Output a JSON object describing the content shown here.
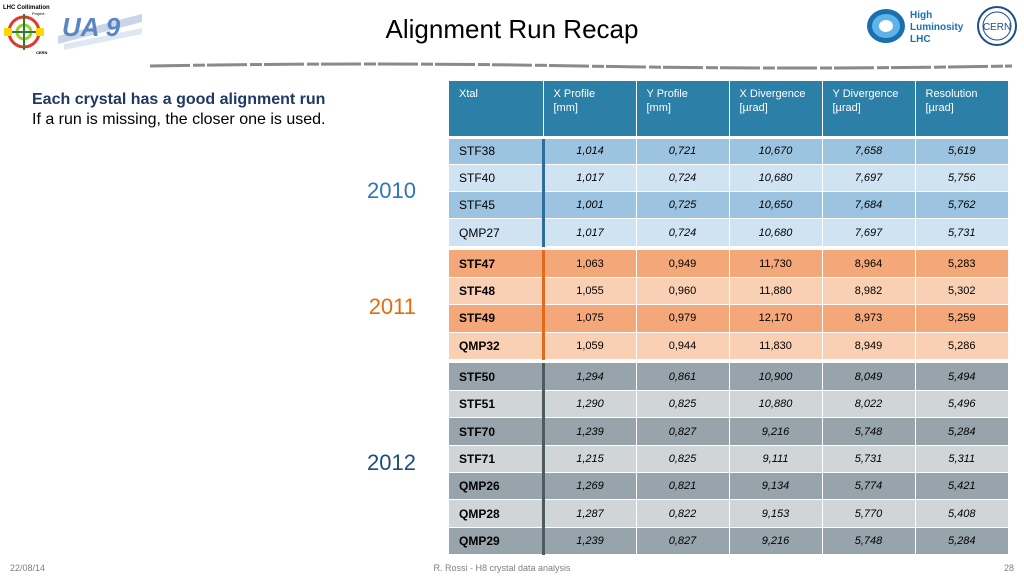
{
  "slide": {
    "title": "Alignment Run Recap",
    "intro_heading": "Each crystal has a good alignment run",
    "intro_text": "If a run is missing, the closer one is used."
  },
  "logos": {
    "left1": "LHC Collimation Project CERN",
    "left2": "UA 9",
    "right1": "High Luminosity LHC",
    "right2": "CERN"
  },
  "years": [
    "2010",
    "2011",
    "2012"
  ],
  "table": {
    "headers": [
      {
        "line1": "Xtal",
        "line2": ""
      },
      {
        "line1": "X Profile",
        "line2": "[mm]"
      },
      {
        "line1": "Y Profile",
        "line2": "[mm]"
      },
      {
        "line1": "X Divergence",
        "line2": "[µrad]"
      },
      {
        "line1": "Y Divergence",
        "line2": "[µrad]"
      },
      {
        "line1": "Resolution",
        "line2": "[µrad]"
      }
    ],
    "group_2010": [
      [
        "STF38",
        "1,014",
        "0,721",
        "10,670",
        "7,658",
        "5,619"
      ],
      [
        "STF40",
        "1,017",
        "0,724",
        "10,680",
        "7,697",
        "5,756"
      ],
      [
        "STF45",
        "1,001",
        "0,725",
        "10,650",
        "7,684",
        "5,762"
      ],
      [
        "QMP27",
        "1,017",
        "0,724",
        "10,680",
        "7,697",
        "5,731"
      ]
    ],
    "group_2011": [
      [
        "STF47",
        "1,063",
        "0,949",
        "11,730",
        "8,964",
        "5,283"
      ],
      [
        "STF48",
        "1,055",
        "0,960",
        "11,880",
        "8,982",
        "5,302"
      ],
      [
        "STF49",
        "1,075",
        "0,979",
        "12,170",
        "8,973",
        "5,259"
      ],
      [
        "QMP32",
        "1,059",
        "0,944",
        "11,830",
        "8,949",
        "5,286"
      ]
    ],
    "group_2012": [
      [
        "STF50",
        "1,294",
        "0,861",
        "10,900",
        "8,049",
        "5,494"
      ],
      [
        "STF51",
        "1,290",
        "0,825",
        "10,880",
        "8,022",
        "5,496"
      ],
      [
        "STF70",
        "1,239",
        "0,827",
        "9,216",
        "5,748",
        "5,284"
      ],
      [
        "STF71",
        "1,215",
        "0,825",
        "9,111",
        "5,731",
        "5,311"
      ],
      [
        "QMP26",
        "1,269",
        "0,821",
        "9,134",
        "5,774",
        "5,421"
      ],
      [
        "QMP28",
        "1,287",
        "0,822",
        "9,153",
        "5,770",
        "5,408"
      ],
      [
        "QMP29",
        "1,239",
        "0,827",
        "9,216",
        "5,748",
        "5,284"
      ]
    ]
  },
  "footer": {
    "date": "22/08/14",
    "center": "R. Rossi - H8 crystal data analysis",
    "page": "28"
  }
}
